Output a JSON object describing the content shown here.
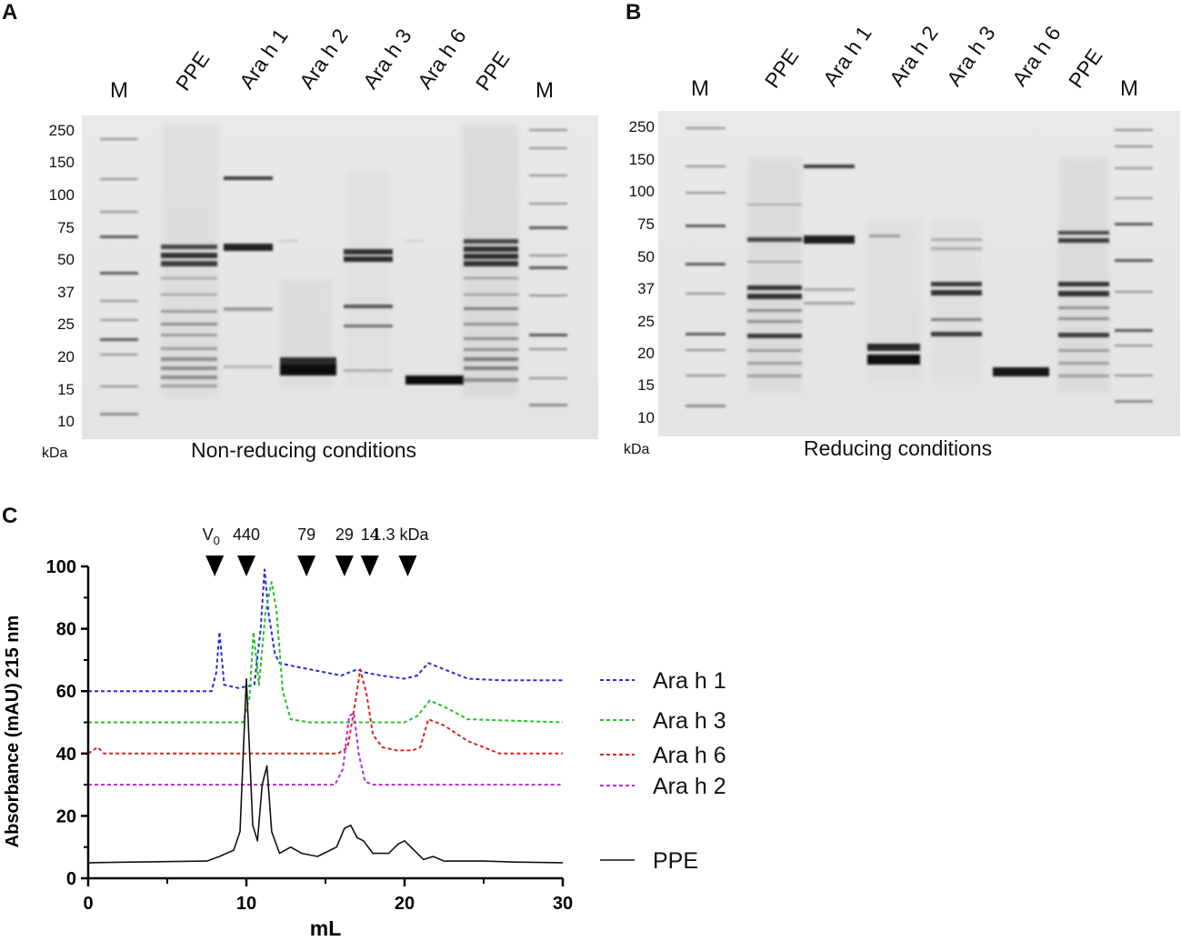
{
  "panelA": {
    "letter": "A",
    "lanes": [
      "M",
      "PPE",
      "Ara h 1",
      "Ara h 2",
      "Ara h 3",
      "Ara h 6",
      "PPE",
      "M"
    ],
    "mw_labels": [
      "250",
      "150",
      "100",
      "75",
      "50",
      "37",
      "25",
      "20",
      "15",
      "10"
    ],
    "unit": "kDa",
    "caption": "Non-reducing conditions"
  },
  "panelB": {
    "letter": "B",
    "lanes": [
      "M",
      "PPE",
      "Ara h 1",
      "Ara h 2",
      "Ara h 3",
      "Ara h 6",
      "PPE",
      "M"
    ],
    "mw_labels": [
      "250",
      "150",
      "100",
      "75",
      "50",
      "37",
      "25",
      "20",
      "15",
      "10"
    ],
    "unit": "kDa",
    "caption": "Reducing conditions"
  },
  "panelC": {
    "letter": "C",
    "markers": [
      {
        "label": "V",
        "sub": "0",
        "x": 8.0
      },
      {
        "label": "440",
        "sub": "",
        "x": 10.0
      },
      {
        "label": "79",
        "sub": "",
        "x": 13.8
      },
      {
        "label": "29",
        "sub": "",
        "x": 16.2
      },
      {
        "label": "14",
        "sub": "",
        "x": 17.8
      },
      {
        "label": "1.3 kDa",
        "sub": "",
        "x": 20.2
      }
    ]
  },
  "chart_data": {
    "type": "line",
    "xlabel": "mL",
    "ylabel": "Absorbance (mAU) 215 nm",
    "xlim": [
      0,
      30
    ],
    "ylim": [
      0,
      100
    ],
    "xticks": [
      0,
      10,
      20,
      30
    ],
    "yticks": [
      0,
      20,
      40,
      60,
      80,
      100
    ],
    "legend_position": "right",
    "series": [
      {
        "name": "Ara h 1",
        "color": "#2b2bd9",
        "dashed": true,
        "x": [
          0,
          7.8,
          8.1,
          8.3,
          8.6,
          9.5,
          10.5,
          10.9,
          11.15,
          11.4,
          11.8,
          12.1,
          13,
          15,
          16,
          17,
          17.5,
          18.5,
          20,
          20.8,
          21.5,
          22.5,
          24,
          26,
          30
        ],
        "y": [
          60,
          60,
          66,
          79,
          62,
          61,
          62,
          80,
          99,
          85,
          72,
          69,
          68,
          66,
          65,
          67,
          66,
          65,
          64,
          65,
          69,
          67,
          64,
          63.5,
          63.5
        ]
      },
      {
        "name": "Ara h 3",
        "color": "#22c322",
        "dashed": true,
        "x": [
          0,
          9.8,
          10.2,
          10.45,
          10.8,
          11.2,
          11.6,
          11.9,
          12.3,
          12.8,
          14,
          20,
          20.8,
          21.6,
          22.5,
          24,
          30
        ],
        "y": [
          50,
          50,
          58,
          79,
          62,
          85,
          95,
          86,
          60,
          51,
          50,
          50,
          52,
          57,
          55,
          51,
          50
        ]
      },
      {
        "name": "Ara h 6",
        "color": "#e02020",
        "dashed": true,
        "x": [
          0,
          0.6,
          1.0,
          15.8,
          16.4,
          16.9,
          17.2,
          17.6,
          18,
          18.6,
          19.5,
          20.5,
          21,
          21.5,
          22.5,
          24,
          26,
          30
        ],
        "y": [
          40,
          42,
          40,
          40,
          42,
          57,
          67,
          59,
          46,
          42,
          41,
          41,
          42,
          51,
          49,
          44,
          40,
          40
        ]
      },
      {
        "name": "Ara h 2",
        "color": "#b52fd6",
        "dashed": true,
        "x": [
          0,
          15.6,
          16.1,
          16.5,
          16.8,
          17.1,
          17.5,
          18,
          30
        ],
        "y": [
          30,
          30,
          35,
          52,
          53,
          40,
          31,
          30,
          30
        ]
      },
      {
        "name": "PPE",
        "color": "#111111",
        "dashed": false,
        "x": [
          0,
          7.5,
          8.3,
          9.2,
          9.6,
          10.0,
          10.4,
          10.7,
          11.0,
          11.3,
          11.6,
          12.1,
          12.8,
          13.5,
          14.5,
          15.3,
          15.7,
          16.2,
          16.6,
          17.0,
          17.4,
          18.0,
          19.0,
          19.6,
          20.0,
          20.6,
          21.2,
          21.8,
          22.5,
          25,
          27,
          30
        ],
        "y": [
          5,
          5.5,
          7,
          9,
          15,
          64,
          17,
          12,
          30,
          36,
          15,
          8,
          10,
          8,
          7,
          9,
          10,
          16,
          17,
          13,
          12,
          8,
          8,
          11,
          12,
          9,
          6,
          7,
          5.5,
          5.5,
          5.2,
          5
        ]
      }
    ]
  }
}
